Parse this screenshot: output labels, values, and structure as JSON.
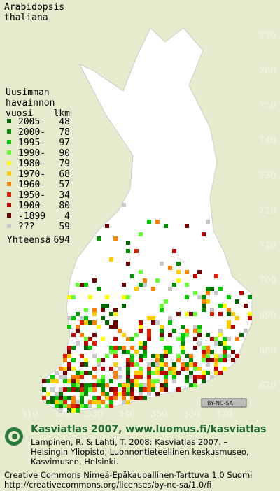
{
  "title": [
    "Arabidopsis",
    "thaliana"
  ],
  "legend": {
    "heading": [
      "Uusimman",
      "havainnon",
      "vuosi"
    ],
    "count_heading": "lkm",
    "items": [
      {
        "label": "2005-",
        "count": 48,
        "color": "#006400"
      },
      {
        "label": "2000-",
        "count": 78,
        "color": "#009000"
      },
      {
        "label": "1995-",
        "count": 97,
        "color": "#00c800"
      },
      {
        "label": "1990-",
        "count": 90,
        "color": "#66ff33"
      },
      {
        "label": "1980-",
        "count": 79,
        "color": "#ffff00"
      },
      {
        "label": "1970-",
        "count": 68,
        "color": "#ffcc00"
      },
      {
        "label": "1960-",
        "count": 57,
        "color": "#ff8000"
      },
      {
        "label": "1950-",
        "count": 34,
        "color": "#e02000"
      },
      {
        "label": "1900-",
        "count": 80,
        "color": "#c00000"
      },
      {
        "label": "-1899",
        "count": 4,
        "color": "#700000"
      },
      {
        "label": "???",
        "count": 59,
        "color": "#c8c8c8"
      }
    ],
    "total_label": "Yhteensä",
    "total": 694
  },
  "grid": {
    "y_labels": [
      770,
      760,
      750,
      740,
      730,
      720,
      710,
      700,
      690,
      680,
      670
    ],
    "x_labels": [
      310,
      320,
      330,
      340,
      350,
      360,
      370
    ]
  },
  "badge": "BY-NC-SA",
  "footer": {
    "heading": "Kasviatlas 2007, www.luomus.fi/kasviatlas",
    "citation": [
      "Lampinen, R. & Lahti, T. 2008: Kasviatlas 2007. –",
      "Helsingin Yliopisto, Luonnontieteellinen keskusmuseo,",
      "Kasvimuseo, Helsinki."
    ],
    "license": [
      "Creative Commons Nimeä-Epäkaupallinen-Tarttuva 1.0 Suomi",
      "http://creativecommons.org/licenses/by-nc-sa/1.0/fi"
    ]
  }
}
